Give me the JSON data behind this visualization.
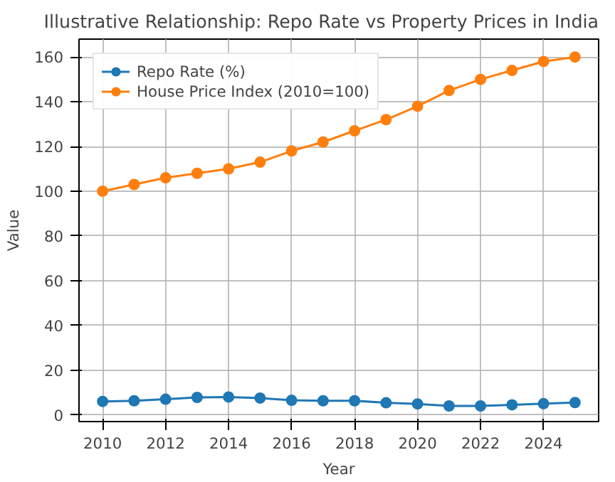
{
  "chart_data": {
    "type": "line",
    "title": "Illustrative Relationship: Repo Rate vs Property Prices in India",
    "xlabel": "Year",
    "ylabel": "Value",
    "x": [
      2010,
      2011,
      2012,
      2013,
      2014,
      2015,
      2016,
      2017,
      2018,
      2019,
      2020,
      2021,
      2022,
      2023,
      2024,
      2025
    ],
    "series": [
      {
        "name": "Repo Rate (%)",
        "color": "#1f77b4",
        "values": [
          6,
          6.3,
          7,
          7.8,
          8,
          7.5,
          6.5,
          6.3,
          6.3,
          5.4,
          4.9,
          4,
          4,
          4.5,
          5,
          5.5
        ]
      },
      {
        "name": "House Price Index (2010=100)",
        "color": "#ff7f0e",
        "values": [
          100,
          103,
          106,
          108,
          110,
          113,
          118,
          122,
          127,
          132,
          138,
          145,
          150,
          154,
          158,
          160
        ]
      }
    ],
    "xlim": [
      2009.25,
      2025.75
    ],
    "ylim": [
      -3,
      168
    ],
    "xticks": [
      2010,
      2012,
      2014,
      2016,
      2018,
      2020,
      2022,
      2024
    ],
    "yticks": [
      0,
      20,
      40,
      60,
      80,
      100,
      120,
      140,
      160
    ],
    "grid": true,
    "legend": "top left",
    "marker": "circle",
    "line_style": "solid"
  }
}
